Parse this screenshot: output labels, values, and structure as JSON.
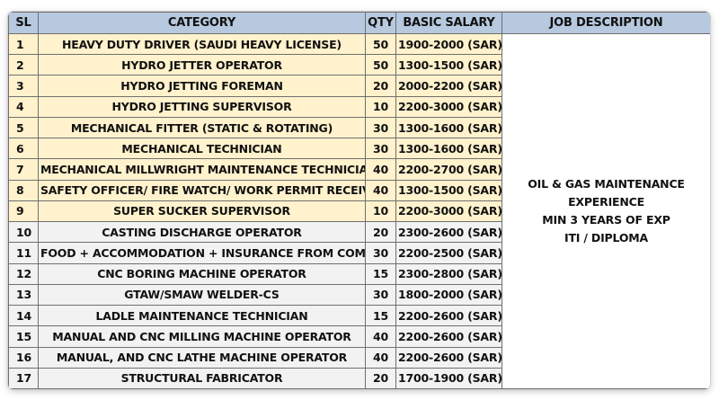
{
  "headers": {
    "sl": "SL",
    "category": "CATEGORY",
    "qty": "QTY",
    "salary": "BASIC SALARY",
    "description": "JOB DESCRIPTION"
  },
  "rows": [
    {
      "sl": "1",
      "category": "HEAVY DUTY DRIVER (SAUDI HEAVY LICENSE)",
      "qty": "50",
      "salary": "1900-2000 (SAR)",
      "highlight": true
    },
    {
      "sl": "2",
      "category": "HYDRO JETTER OPERATOR",
      "qty": "50",
      "salary": "1300-1500 (SAR)",
      "highlight": true
    },
    {
      "sl": "3",
      "category": "HYDRO JETTING FOREMAN",
      "qty": "20",
      "salary": "2000-2200 (SAR)",
      "highlight": true
    },
    {
      "sl": "4",
      "category": "HYDRO JETTING SUPERVISOR",
      "qty": "10",
      "salary": "2200-3000 (SAR)",
      "highlight": true
    },
    {
      "sl": "5",
      "category": "MECHANICAL FITTER (STATIC & ROTATING)",
      "qty": "30",
      "salary": "1300-1600 (SAR)",
      "highlight": true
    },
    {
      "sl": "6",
      "category": "MECHANICAL TECHNICIAN",
      "qty": "30",
      "salary": "1300-1600 (SAR)",
      "highlight": true
    },
    {
      "sl": "7",
      "category": "MECHANICAL MILLWRIGHT MAINTENANCE TECHNICIAN",
      "qty": "40",
      "salary": "2200-2700 (SAR)",
      "highlight": true
    },
    {
      "sl": "8",
      "category": "SAFETY OFFICER/ FIRE WATCH/ WORK PERMIT RECEIVER",
      "qty": "40",
      "salary": "1300-1500 (SAR)",
      "highlight": true
    },
    {
      "sl": "9",
      "category": "SUPER SUCKER SUPERVISOR",
      "qty": "10",
      "salary": "2200-3000 (SAR)",
      "highlight": true
    },
    {
      "sl": "10",
      "category": "CASTING DISCHARGE OPERATOR",
      "qty": "20",
      "salary": "2300-2600 (SAR)",
      "highlight": false
    },
    {
      "sl": "11",
      "category": "FOOD + ACCOMMODATION + INSURANCE FROM COMAPANY",
      "qty": "30",
      "salary": "2200-2500 (SAR)",
      "highlight": false
    },
    {
      "sl": "12",
      "category": "CNC BORING MACHINE OPERATOR",
      "qty": "15",
      "salary": "2300-2800 (SAR)",
      "highlight": false
    },
    {
      "sl": "13",
      "category": "GTAW/SMAW WELDER-CS",
      "qty": "30",
      "salary": "1800-2000 (SAR)",
      "highlight": false
    },
    {
      "sl": "14",
      "category": "LADLE MAINTENANCE TECHNICIAN",
      "qty": "15",
      "salary": "2200-2600 (SAR)",
      "highlight": false
    },
    {
      "sl": "15",
      "category": "MANUAL AND CNC MILLING MACHINE OPERATOR",
      "qty": "40",
      "salary": "2200-2600 (SAR)",
      "highlight": false
    },
    {
      "sl": "16",
      "category": "MANUAL, AND CNC LATHE MACHINE OPERATOR",
      "qty": "40",
      "salary": "2200-2600 (SAR)",
      "highlight": false
    },
    {
      "sl": "17",
      "category": "STRUCTURAL FABRICATOR",
      "qty": "20",
      "salary": "1700-1900 (SAR)",
      "highlight": false
    }
  ],
  "description": {
    "line1": "OIL & GAS MAINTENANCE EXPERIENCE",
    "line2": "MIN 3 YEARS OF EXP",
    "line3": "ITI / DIPLOMA"
  },
  "colors": {
    "header_bg": "#b7c9de",
    "highlight_bg": "#fff2cc",
    "plain_bg": "#f2f2f2",
    "border": "#6f6f6f"
  }
}
